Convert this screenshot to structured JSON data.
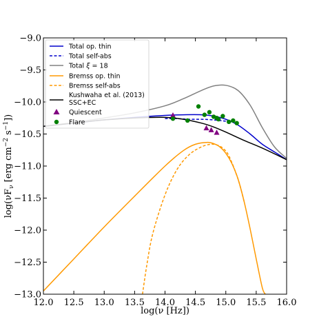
{
  "chart_data": {
    "type": "line",
    "xlabel": "log(ν [Hz])",
    "ylabel_parts": [
      "log(νF",
      "ν",
      " [erg cm",
      "−2",
      " s",
      "−1",
      "])"
    ],
    "xlim": [
      12.0,
      16.0
    ],
    "ylim": [
      -13.0,
      -9.0
    ],
    "xticks": [
      12.0,
      12.5,
      13.0,
      13.5,
      14.0,
      14.5,
      15.0,
      15.5,
      16.0
    ],
    "xtick_labels": [
      "12.0",
      "12.5",
      "13.0",
      "13.5",
      "14.0",
      "14.5",
      "15.0",
      "15.5",
      "16.0"
    ],
    "yticks": [
      -13.0,
      -12.5,
      -12.0,
      -11.5,
      -11.0,
      -10.5,
      -10.0,
      -9.5,
      -9.0
    ],
    "ytick_labels": [
      "−13.0",
      "−12.5",
      "−12.0",
      "−11.5",
      "−11.0",
      "−10.5",
      "−10.0",
      "−9.5",
      "−9.0"
    ],
    "legend_position": "upper-left",
    "series": [
      {
        "key": "total-thin",
        "name": "Total op. thin",
        "color": "#0000cc",
        "dash": "solid",
        "x": [
          12.0,
          12.5,
          13.0,
          13.5,
          14.0,
          14.3,
          14.6,
          14.8,
          15.0,
          15.2,
          15.4,
          15.6,
          15.8,
          16.0
        ],
        "y": [
          -10.38,
          -10.33,
          -10.28,
          -10.24,
          -10.21,
          -10.2,
          -10.2,
          -10.22,
          -10.27,
          -10.36,
          -10.5,
          -10.66,
          -10.78,
          -10.9
        ]
      },
      {
        "key": "total-selfabs",
        "name": "Total self-abs",
        "color": "#0000cc",
        "dash": "dashed",
        "x": [
          14.0,
          14.2,
          14.4,
          14.6,
          14.8,
          15.0
        ],
        "y": [
          -10.26,
          -10.26,
          -10.27,
          -10.27,
          -10.28,
          -10.3
        ]
      },
      {
        "key": "total-xi18",
        "name": "Total ξ = 18",
        "label_main": "Total ",
        "label_greek": "ξ",
        "label_tail": " = 18",
        "color": "#808080",
        "dash": "solid",
        "x": [
          12.0,
          12.5,
          13.0,
          13.5,
          14.0,
          14.3,
          14.6,
          14.8,
          15.0,
          15.2,
          15.4,
          15.6,
          15.8,
          16.0
        ],
        "y": [
          -10.38,
          -10.32,
          -10.25,
          -10.17,
          -10.06,
          -9.95,
          -9.82,
          -9.75,
          -9.74,
          -9.82,
          -10.05,
          -10.4,
          -10.7,
          -10.88
        ]
      },
      {
        "key": "bremss-thin",
        "name": "Bremss op. thin",
        "color": "#ff9900",
        "dash": "solid",
        "x": [
          12.0,
          12.5,
          13.0,
          13.5,
          14.0,
          14.3,
          14.5,
          14.7,
          14.8,
          14.9,
          15.0,
          15.1,
          15.2,
          15.3,
          15.4,
          15.5,
          15.6,
          15.65
        ],
        "y": [
          -12.95,
          -12.45,
          -11.95,
          -11.47,
          -11.0,
          -10.76,
          -10.66,
          -10.63,
          -10.65,
          -10.7,
          -10.8,
          -10.96,
          -11.2,
          -11.55,
          -11.98,
          -12.45,
          -12.9,
          -13.0
        ]
      },
      {
        "key": "bremss-selfabs",
        "name": "Bremss self-abs",
        "color": "#ff9900",
        "dash": "dashed",
        "x": [
          13.63,
          13.7,
          13.8,
          14.0,
          14.2,
          14.4,
          14.6,
          14.75,
          14.85,
          14.95,
          15.05,
          15.2,
          15.3
        ],
        "y": [
          -13.0,
          -12.55,
          -12.05,
          -11.45,
          -11.05,
          -10.82,
          -10.7,
          -10.66,
          -10.67,
          -10.72,
          -10.84,
          -11.2,
          -11.55
        ]
      },
      {
        "key": "kushwaha",
        "name": "Kushwaha et al. (2013)",
        "name_line2": "SSC+EC",
        "color": "#000000",
        "dash": "solid",
        "x": [
          12.0,
          12.5,
          13.0,
          13.5,
          14.0,
          14.3,
          14.6,
          14.8,
          15.0,
          15.3,
          15.6,
          16.0
        ],
        "y": [
          -10.38,
          -10.33,
          -10.28,
          -10.25,
          -10.24,
          -10.27,
          -10.33,
          -10.39,
          -10.47,
          -10.6,
          -10.72,
          -10.9
        ]
      }
    ],
    "scatter": [
      {
        "key": "quiescent",
        "name": "Quiescent",
        "color": "#800080",
        "marker": "triangle",
        "x": [
          14.13,
          14.68,
          14.76,
          14.85
        ],
        "y": [
          -10.21,
          -10.41,
          -10.44,
          -10.48
        ]
      },
      {
        "key": "flare",
        "name": "Flare",
        "color": "#008000",
        "marker": "circle",
        "x": [
          14.13,
          14.37,
          14.55,
          14.65,
          14.73,
          14.8,
          14.88,
          14.95,
          15.05,
          15.12,
          15.18,
          14.85
        ],
        "y": [
          -10.26,
          -10.29,
          -10.07,
          -10.2,
          -10.16,
          -10.23,
          -10.27,
          -10.22,
          -10.31,
          -10.29,
          -10.33,
          -10.25
        ]
      }
    ]
  }
}
